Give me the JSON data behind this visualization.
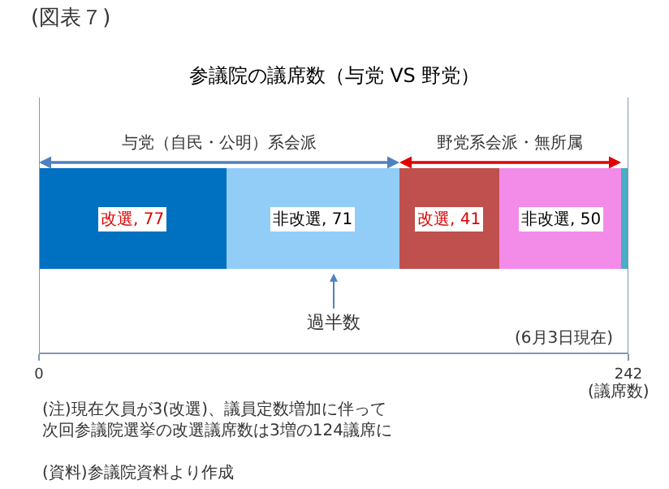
{
  "chart_data": {
    "type": "bar",
    "orientation": "horizontal",
    "stacked": true,
    "title": "参議院の議席数（与党 VS 野党）",
    "xlabel": "(議席数)",
    "categories": [
      null
    ],
    "series": [
      {
        "color": "#0070c0",
        "values": [
          77
        ],
        "value_labels": [
          "改選, 77"
        ]
      },
      {
        "color": "#92cdf7",
        "values": [
          71
        ],
        "value_labels": [
          "非改選, 71"
        ]
      },
      {
        "color": "#c0504d",
        "values": [
          41
        ],
        "value_labels": [
          "改選, 41"
        ]
      },
      {
        "color": "#f38be8",
        "values": [
          50
        ],
        "value_labels": [
          "非改選, 50"
        ]
      },
      {
        "color": "#4bacc6",
        "values": [
          3
        ],
        "value_labels": [
          null
        ]
      }
    ],
    "xlim": [
      0,
      242
    ],
    "xticks": [
      0,
      242
    ],
    "legend": false,
    "tick_labels": "x",
    "annotations": [
      "(図表７)",
      "与党（自民・公明）系会派",
      "野党系会派・無所属",
      "過半数",
      "(6月3日現在)",
      "(注)現在欠員が3(改選)、議員定数増加に伴って次回参議院選挙の改選議席数は3増の124議席に",
      "(資料)参議院資料より作成"
    ]
  }
}
